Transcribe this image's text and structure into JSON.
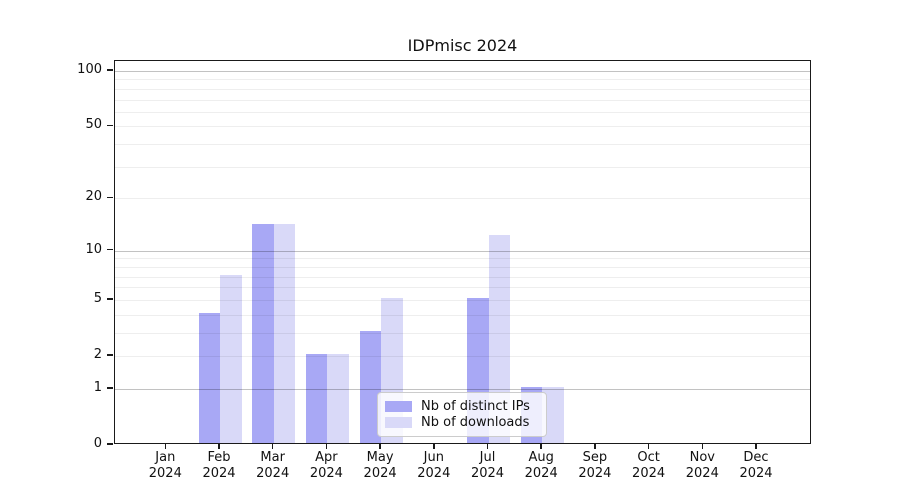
{
  "chart_data": {
    "type": "bar",
    "title": "IDPmisc 2024",
    "scale": "log1p",
    "x_months": [
      "Jan",
      "Feb",
      "Mar",
      "Apr",
      "May",
      "Jun",
      "Jul",
      "Aug",
      "Sep",
      "Oct",
      "Nov",
      "Dec"
    ],
    "x_year": "2024",
    "series": [
      {
        "name": "Nb of distinct IPs",
        "color": "#a8a8f5",
        "values": [
          0,
          4,
          14,
          2,
          3,
          0,
          5,
          1,
          0,
          0,
          0,
          0
        ]
      },
      {
        "name": "Nb of downloads",
        "color": "#d9d9f8",
        "values": [
          0,
          7,
          14,
          2,
          5,
          0,
          12,
          1,
          0,
          0,
          0,
          0
        ]
      }
    ],
    "yticks": [
      0,
      1,
      2,
      5,
      10,
      20,
      50,
      100
    ],
    "ylim": [
      0,
      114
    ],
    "grid": {
      "major": [
        1,
        10,
        100
      ],
      "minor": [
        2,
        3,
        4,
        5,
        6,
        7,
        8,
        9,
        20,
        30,
        40,
        50,
        60,
        70,
        80,
        90
      ]
    },
    "legend_position": "lower center"
  }
}
